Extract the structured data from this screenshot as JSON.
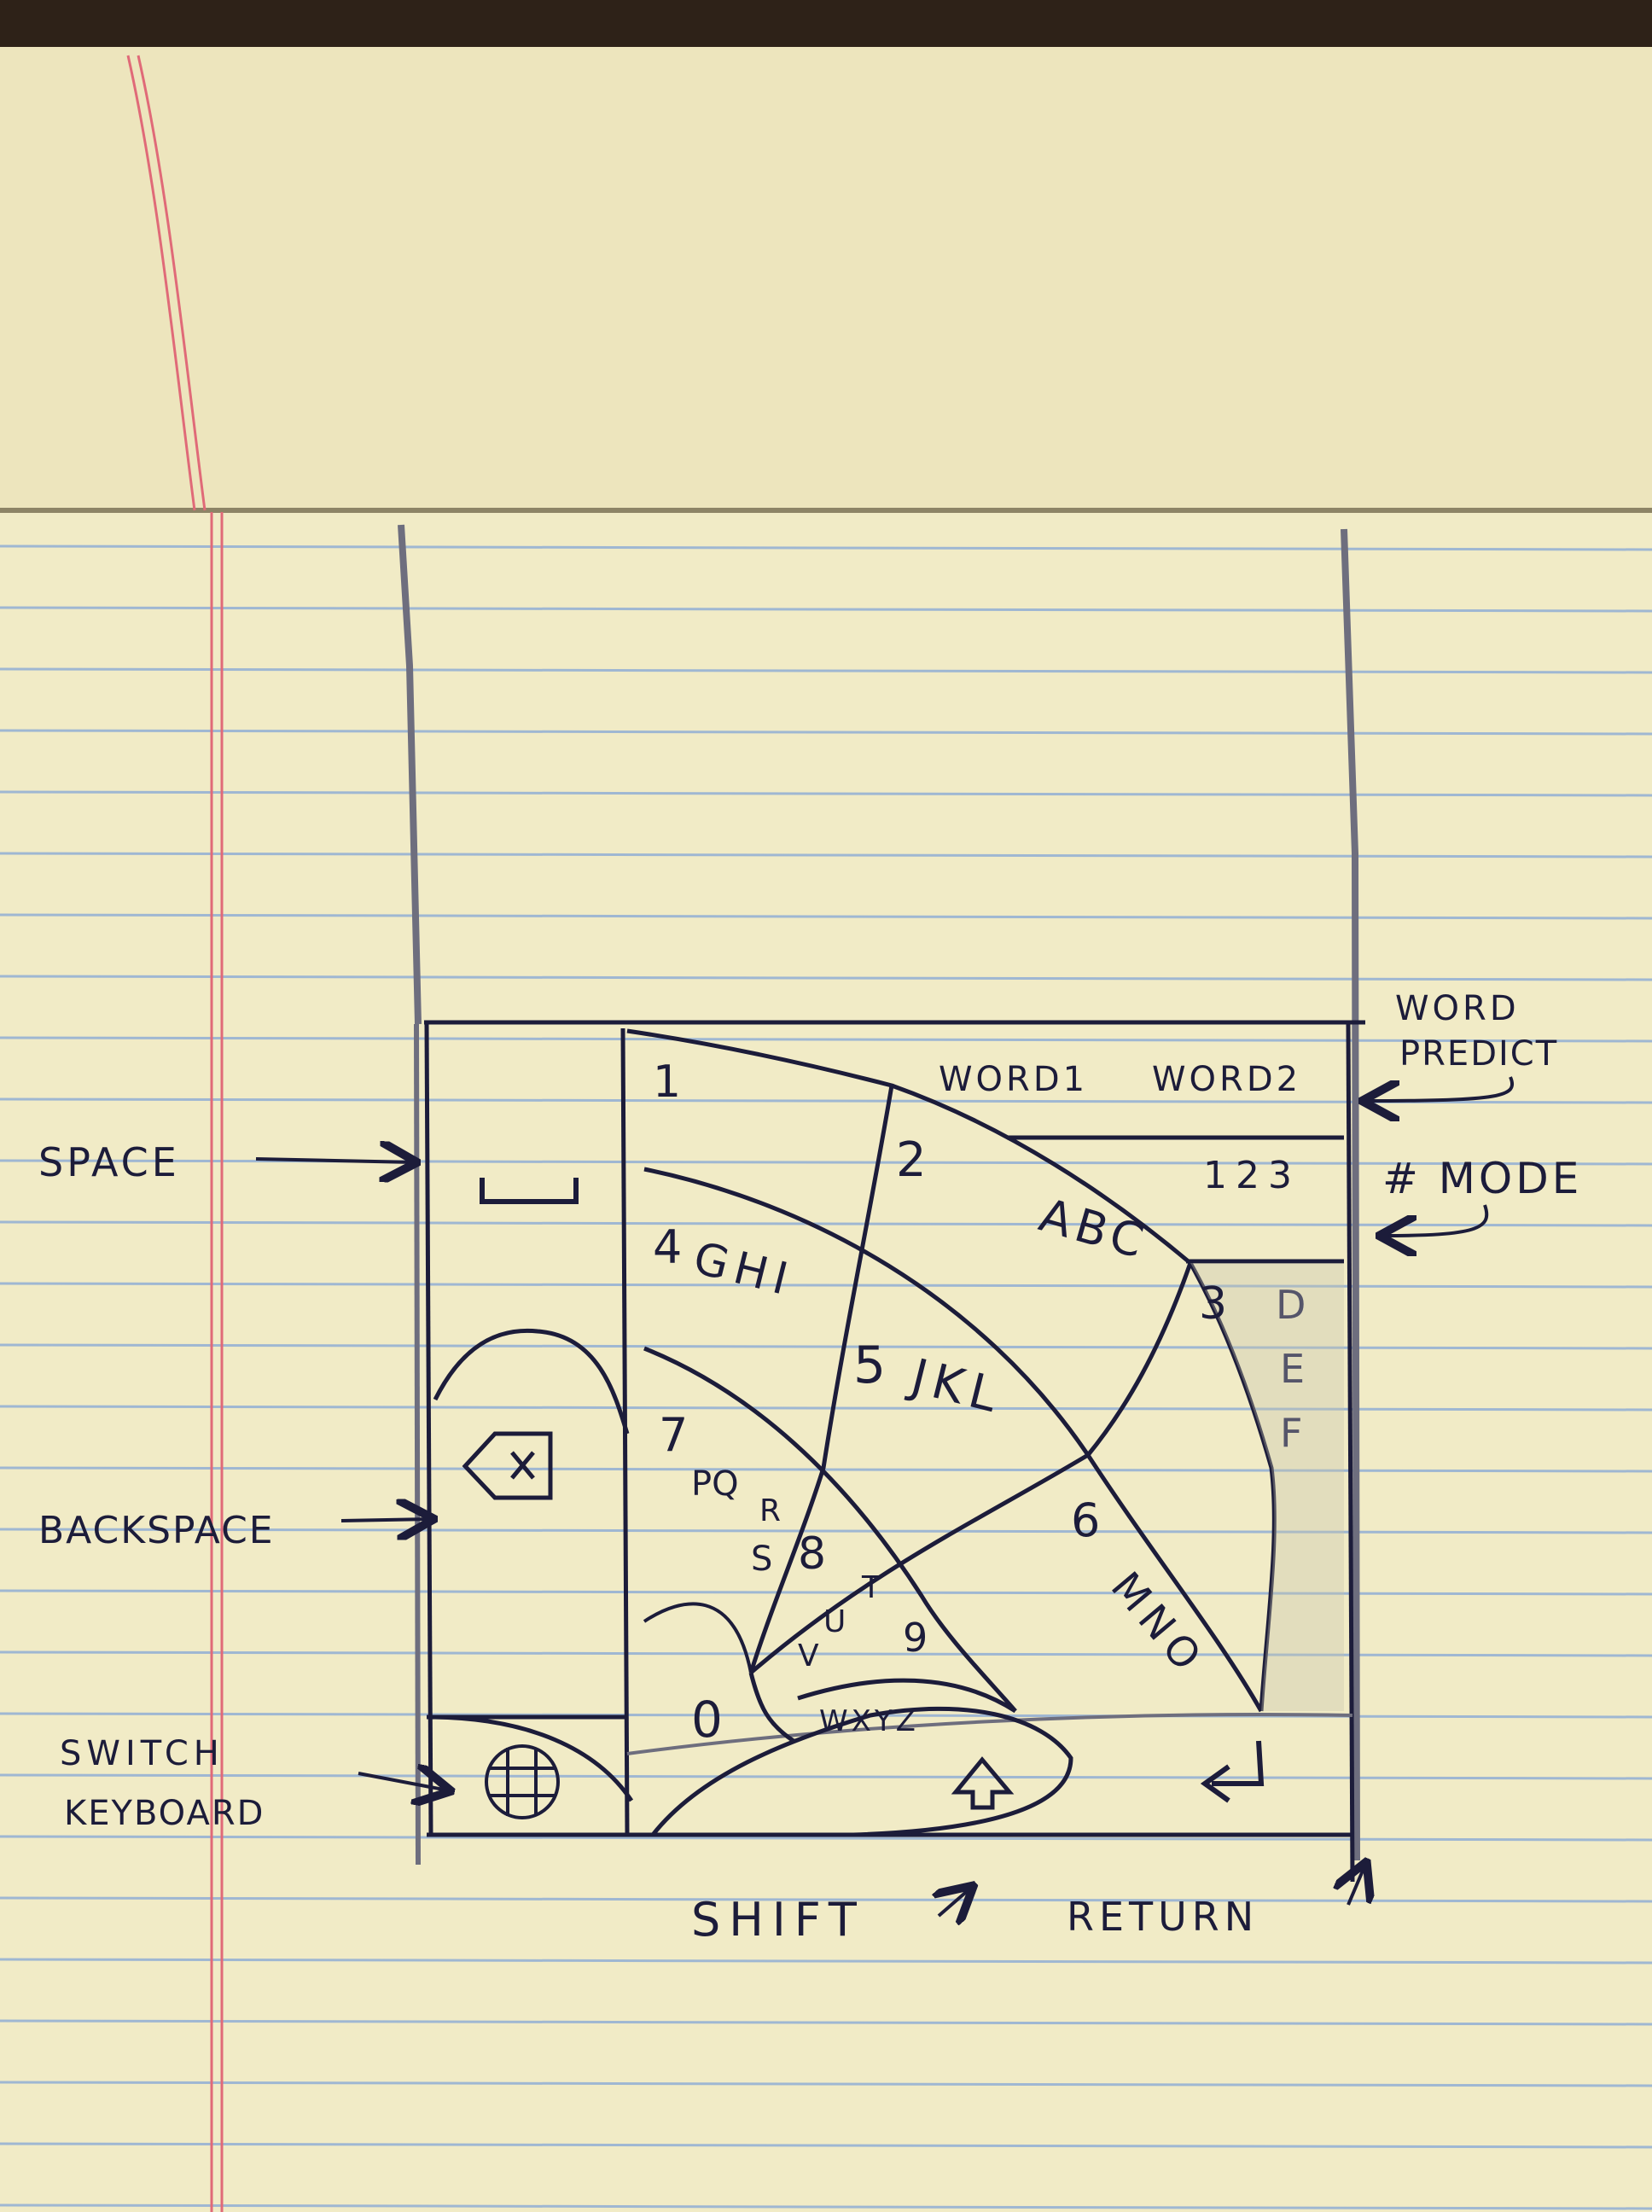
{
  "paper": {
    "color": "#f1ebc6",
    "rule_color": "#9fb7d2",
    "margin_color": "#e06a78",
    "ink_color": "#1c1c3a",
    "pencil_color": "#6e6e7e"
  },
  "keyboard": {
    "word_predict": {
      "word1": "WORD1",
      "word2": "WORD2"
    },
    "number_mode": {
      "label": "123"
    },
    "keys": {
      "k1": "1",
      "k2": "2",
      "k2_letters": "ABC",
      "k3": "3",
      "k3_letters": [
        "D",
        "E",
        "F"
      ],
      "k4": "4",
      "k4_letters": "GHI",
      "k5": "5",
      "k5_letters": "JKL",
      "k6": "6",
      "k6_letters": "MNO",
      "k7": "7",
      "k7_letters": [
        "PQ",
        "R",
        "S"
      ],
      "k8": "8",
      "k8_letters": [
        "T",
        "U",
        "V"
      ],
      "k9": "9",
      "k9_letters": "WXYZ",
      "k0": "0"
    },
    "icons": {
      "space": "space-bar-icon",
      "backspace": "backspace-x-icon",
      "switch_keyboard": "globe-icon",
      "shift": "shift-arrow-icon",
      "return": "return-arrow-icon"
    }
  },
  "annotations": {
    "space": "SPACE",
    "backspace": "BACKSPACE",
    "switch_keyboard": [
      "SWITCH",
      "KEYBOARD"
    ],
    "word_predict": [
      "WORD",
      "PREDICT"
    ],
    "number_mode": "# MODE",
    "shift": "SHIFT",
    "return": "RETURN"
  }
}
